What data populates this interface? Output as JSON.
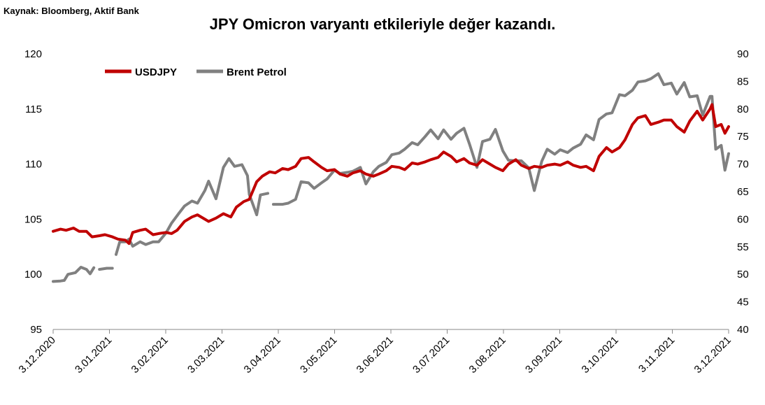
{
  "source": "Kaynak: Bloomberg, Aktif Bank",
  "chart_data": {
    "type": "line",
    "title": "JPY Omicron varyantı etkileriyle değer kazandı.",
    "x_range": [
      "3.12.2020",
      "3.12.2021"
    ],
    "x_tick_labels": [
      "3.12.2020",
      "3.01.2021",
      "3.02.2021",
      "3.03.2021",
      "3.04.2021",
      "3.05.2021",
      "3.06.2021",
      "3.07.2021",
      "3.08.2021",
      "3.09.2021",
      "3.10.2021",
      "3.11.2021",
      "3.12.2021"
    ],
    "y_left": {
      "ticks": [
        "95",
        "100",
        "105",
        "110",
        "115",
        "120"
      ],
      "range": [
        95,
        120
      ]
    },
    "y_right": {
      "ticks": [
        "40",
        "45",
        "50",
        "55",
        "60",
        "65",
        "70",
        "75",
        "80",
        "85",
        "90"
      ],
      "range": [
        40,
        90
      ]
    },
    "grid": false,
    "legend_placement": "top-left",
    "series": [
      {
        "name": "USDJPY",
        "axis": "left",
        "color": "#c00000",
        "points": [
          [
            "2020-12-03",
            103.9
          ],
          [
            "2020-12-07",
            104.1
          ],
          [
            "2020-12-10",
            104.0
          ],
          [
            "2020-12-14",
            104.2
          ],
          [
            "2020-12-17",
            103.9
          ],
          [
            "2020-12-21",
            103.9
          ],
          [
            "2020-12-24",
            103.4
          ],
          [
            "2020-12-28",
            103.5
          ],
          [
            "2020-12-31",
            103.6
          ],
          [
            "2021-01-04",
            103.4
          ],
          [
            "2021-01-07",
            103.2
          ],
          [
            "2021-01-11",
            103.1
          ],
          [
            "2021-01-13",
            102.8
          ],
          [
            "2021-01-15",
            103.8
          ],
          [
            "2021-01-19",
            104.0
          ],
          [
            "2021-01-22",
            104.1
          ],
          [
            "2021-01-26",
            103.6
          ],
          [
            "2021-01-29",
            103.7
          ],
          [
            "2021-02-02",
            103.8
          ],
          [
            "2021-02-05",
            103.7
          ],
          [
            "2021-02-08",
            104.0
          ],
          [
            "2021-02-12",
            104.8
          ],
          [
            "2021-02-16",
            105.2
          ],
          [
            "2021-02-19",
            105.4
          ],
          [
            "2021-02-23",
            105.0
          ],
          [
            "2021-02-25",
            104.8
          ],
          [
            "2021-03-01",
            105.1
          ],
          [
            "2021-03-05",
            105.5
          ],
          [
            "2021-03-09",
            105.2
          ],
          [
            "2021-03-12",
            106.1
          ],
          [
            "2021-03-16",
            106.6
          ],
          [
            "2021-03-19",
            106.8
          ],
          [
            "2021-03-23",
            108.4
          ],
          [
            "2021-03-26",
            108.9
          ],
          [
            "2021-03-30",
            109.3
          ],
          [
            "2021-04-02",
            109.2
          ],
          [
            "2021-04-06",
            109.6
          ],
          [
            "2021-04-09",
            109.5
          ],
          [
            "2021-04-13",
            109.8
          ],
          [
            "2021-04-16",
            110.5
          ],
          [
            "2021-04-20",
            110.6
          ],
          [
            "2021-04-23",
            110.2
          ],
          [
            "2021-04-27",
            109.7
          ],
          [
            "2021-04-30",
            109.4
          ],
          [
            "2021-05-04",
            109.5
          ],
          [
            "2021-05-07",
            109.1
          ],
          [
            "2021-05-11",
            108.9
          ],
          [
            "2021-05-14",
            109.2
          ],
          [
            "2021-05-18",
            109.4
          ],
          [
            "2021-05-21",
            109.1
          ],
          [
            "2021-05-25",
            108.9
          ],
          [
            "2021-05-28",
            109.1
          ],
          [
            "2021-06-01",
            109.4
          ],
          [
            "2021-06-04",
            109.8
          ],
          [
            "2021-06-08",
            109.7
          ],
          [
            "2021-06-11",
            109.5
          ],
          [
            "2021-06-15",
            110.1
          ],
          [
            "2021-06-18",
            110.0
          ],
          [
            "2021-06-22",
            110.2
          ],
          [
            "2021-06-25",
            110.4
          ],
          [
            "2021-06-29",
            110.6
          ],
          [
            "2021-07-02",
            111.1
          ],
          [
            "2021-07-06",
            110.7
          ],
          [
            "2021-07-09",
            110.2
          ],
          [
            "2021-07-13",
            110.5
          ],
          [
            "2021-07-16",
            110.1
          ],
          [
            "2021-07-20",
            109.9
          ],
          [
            "2021-07-23",
            110.4
          ],
          [
            "2021-07-27",
            110.0
          ],
          [
            "2021-07-30",
            109.7
          ],
          [
            "2021-08-03",
            109.4
          ],
          [
            "2021-08-06",
            110.0
          ],
          [
            "2021-08-10",
            110.4
          ],
          [
            "2021-08-13",
            109.9
          ],
          [
            "2021-08-17",
            109.6
          ],
          [
            "2021-08-20",
            109.8
          ],
          [
            "2021-08-24",
            109.7
          ],
          [
            "2021-08-27",
            109.9
          ],
          [
            "2021-08-31",
            110.0
          ],
          [
            "2021-09-03",
            109.9
          ],
          [
            "2021-09-07",
            110.2
          ],
          [
            "2021-09-10",
            109.9
          ],
          [
            "2021-09-14",
            109.7
          ],
          [
            "2021-09-17",
            109.8
          ],
          [
            "2021-09-21",
            109.4
          ],
          [
            "2021-09-24",
            110.7
          ],
          [
            "2021-09-28",
            111.5
          ],
          [
            "2021-10-01",
            111.1
          ],
          [
            "2021-10-05",
            111.5
          ],
          [
            "2021-10-08",
            112.2
          ],
          [
            "2021-10-12",
            113.6
          ],
          [
            "2021-10-15",
            114.2
          ],
          [
            "2021-10-19",
            114.4
          ],
          [
            "2021-10-22",
            113.6
          ],
          [
            "2021-10-26",
            113.8
          ],
          [
            "2021-10-29",
            114.0
          ],
          [
            "2021-11-02",
            114.0
          ],
          [
            "2021-11-05",
            113.4
          ],
          [
            "2021-11-09",
            112.9
          ],
          [
            "2021-11-12",
            113.9
          ],
          [
            "2021-11-16",
            114.8
          ],
          [
            "2021-11-19",
            114.0
          ],
          [
            "2021-11-23",
            115.0
          ],
          [
            "2021-11-24",
            115.4
          ],
          [
            "2021-11-26",
            113.4
          ],
          [
            "2021-11-29",
            113.6
          ],
          [
            "2021-12-01",
            112.8
          ],
          [
            "2021-12-03",
            113.4
          ]
        ]
      },
      {
        "name": "Brent Petrol",
        "axis": "right",
        "color": "#808080",
        "segments": [
          [
            [
              "2020-12-03",
              48.7
            ],
            [
              "2020-12-07",
              48.8
            ],
            [
              "2020-12-09",
              48.9
            ],
            [
              "2020-12-11",
              50.0
            ],
            [
              "2020-12-15",
              50.3
            ],
            [
              "2020-12-18",
              51.3
            ],
            [
              "2020-12-21",
              50.9
            ],
            [
              "2020-12-23",
              50.1
            ],
            [
              "2020-12-25",
              51.2
            ]
          ],
          [
            [
              "2020-12-28",
              50.9
            ],
            [
              "2021-01-01",
              51.1
            ],
            [
              "2021-01-04",
              51.1
            ]
          ],
          [
            [
              "2021-01-06",
              53.6
            ],
            [
              "2021-01-08",
              55.9
            ],
            [
              "2021-01-11",
              55.9
            ],
            [
              "2021-01-13",
              56.4
            ],
            [
              "2021-01-15",
              55.1
            ],
            [
              "2021-01-19",
              55.9
            ],
            [
              "2021-01-22",
              55.4
            ],
            [
              "2021-01-26",
              55.9
            ],
            [
              "2021-01-29",
              55.9
            ],
            [
              "2021-02-02",
              57.5
            ],
            [
              "2021-02-05",
              59.3
            ],
            [
              "2021-02-09",
              61.1
            ],
            [
              "2021-02-12",
              62.4
            ],
            [
              "2021-02-16",
              63.3
            ],
            [
              "2021-02-19",
              62.9
            ],
            [
              "2021-02-23",
              65.2
            ],
            [
              "2021-02-25",
              66.9
            ],
            [
              "2021-03-01",
              63.7
            ],
            [
              "2021-03-05",
              69.4
            ],
            [
              "2021-03-08",
              71.0
            ],
            [
              "2021-03-11",
              69.6
            ],
            [
              "2021-03-15",
              69.9
            ],
            [
              "2021-03-18",
              67.9
            ],
            [
              "2021-03-19",
              64.5
            ],
            [
              "2021-03-23",
              60.8
            ],
            [
              "2021-03-25",
              64.4
            ],
            [
              "2021-03-29",
              64.7
            ]
          ],
          [
            [
              "2021-04-01",
              62.7
            ],
            [
              "2021-04-06",
              62.7
            ],
            [
              "2021-04-09",
              62.9
            ],
            [
              "2021-04-13",
              63.6
            ],
            [
              "2021-04-16",
              66.8
            ],
            [
              "2021-04-20",
              66.6
            ],
            [
              "2021-04-23",
              65.6
            ],
            [
              "2021-04-27",
              66.6
            ],
            [
              "2021-04-30",
              67.3
            ],
            [
              "2021-05-04",
              68.9
            ],
            [
              "2021-05-07",
              68.3
            ],
            [
              "2021-05-11",
              68.5
            ],
            [
              "2021-05-14",
              68.7
            ],
            [
              "2021-05-18",
              69.4
            ],
            [
              "2021-05-21",
              66.4
            ],
            [
              "2021-05-25",
              68.6
            ],
            [
              "2021-05-28",
              69.6
            ],
            [
              "2021-06-01",
              70.3
            ],
            [
              "2021-06-04",
              71.7
            ],
            [
              "2021-06-08",
              72.0
            ],
            [
              "2021-06-11",
              72.7
            ],
            [
              "2021-06-15",
              73.9
            ],
            [
              "2021-06-18",
              73.5
            ],
            [
              "2021-06-22",
              75.0
            ],
            [
              "2021-06-25",
              76.2
            ],
            [
              "2021-06-29",
              74.6
            ],
            [
              "2021-07-02",
              76.2
            ],
            [
              "2021-07-06",
              74.5
            ],
            [
              "2021-07-09",
              75.6
            ],
            [
              "2021-07-13",
              76.5
            ],
            [
              "2021-07-16",
              73.6
            ],
            [
              "2021-07-20",
              69.4
            ],
            [
              "2021-07-23",
              74.1
            ],
            [
              "2021-07-27",
              74.5
            ],
            [
              "2021-07-30",
              76.3
            ],
            [
              "2021-08-03",
              72.4
            ],
            [
              "2021-08-06",
              70.7
            ],
            [
              "2021-08-10",
              70.6
            ],
            [
              "2021-08-13",
              70.6
            ],
            [
              "2021-08-17",
              69.3
            ],
            [
              "2021-08-20",
              65.2
            ],
            [
              "2021-08-24",
              70.5
            ],
            [
              "2021-08-27",
              72.7
            ],
            [
              "2021-08-31",
              71.8
            ],
            [
              "2021-09-03",
              72.6
            ],
            [
              "2021-09-07",
              72.1
            ],
            [
              "2021-09-10",
              72.9
            ],
            [
              "2021-09-14",
              73.6
            ],
            [
              "2021-09-17",
              75.3
            ],
            [
              "2021-09-21",
              74.4
            ],
            [
              "2021-09-24",
              78.1
            ],
            [
              "2021-09-28",
              79.1
            ],
            [
              "2021-10-01",
              79.3
            ],
            [
              "2021-10-05",
              82.6
            ],
            [
              "2021-10-08",
              82.4
            ],
            [
              "2021-10-12",
              83.4
            ],
            [
              "2021-10-15",
              84.9
            ],
            [
              "2021-10-19",
              85.1
            ],
            [
              "2021-10-22",
              85.5
            ],
            [
              "2021-10-26",
              86.4
            ],
            [
              "2021-10-29",
              84.4
            ],
            [
              "2021-11-02",
              84.7
            ],
            [
              "2021-11-05",
              82.7
            ],
            [
              "2021-11-09",
              84.8
            ],
            [
              "2021-11-12",
              82.2
            ],
            [
              "2021-11-16",
              82.4
            ],
            [
              "2021-11-19",
              78.9
            ],
            [
              "2021-11-23",
              82.3
            ],
            [
              "2021-11-24",
              82.3
            ],
            [
              "2021-11-26",
              72.7
            ],
            [
              "2021-11-29",
              73.4
            ],
            [
              "2021-12-01",
              68.9
            ],
            [
              "2021-12-03",
              71.9
            ]
          ]
        ]
      }
    ]
  }
}
